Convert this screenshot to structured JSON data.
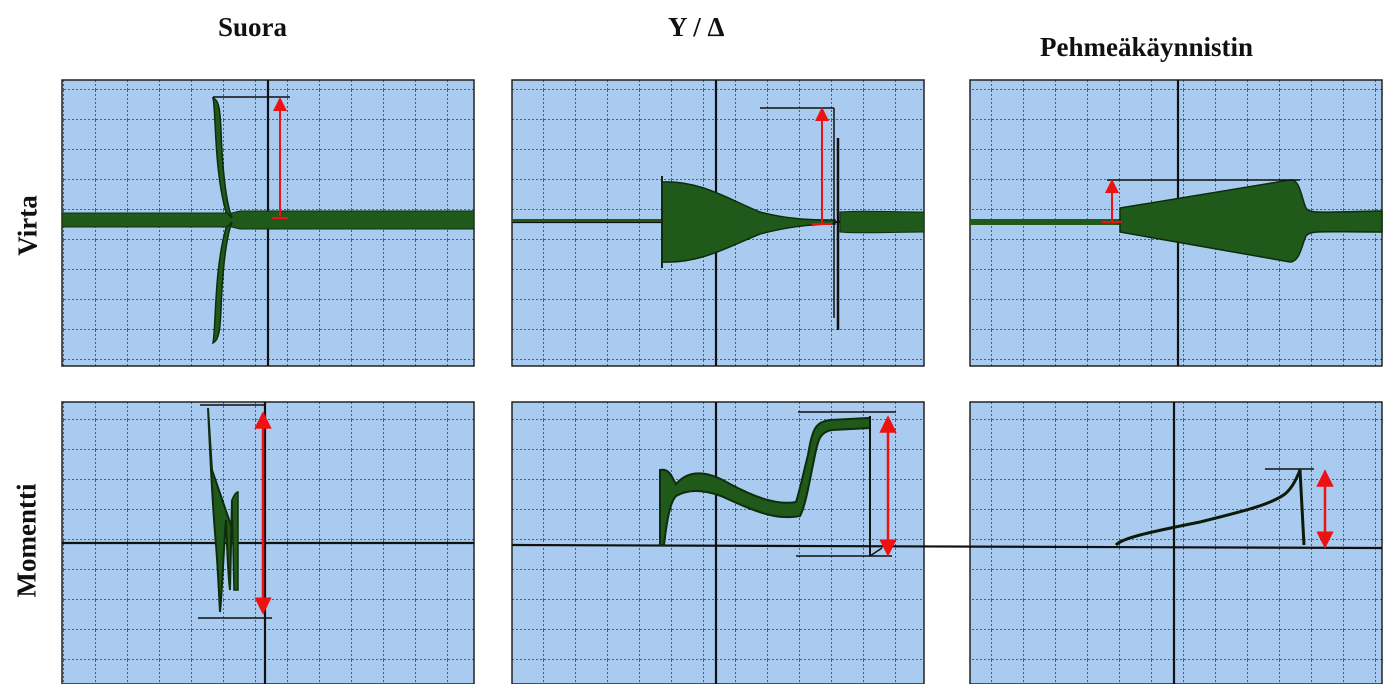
{
  "columns": [
    "Suora",
    "Y / Δ",
    "Pehmeäkäynnistin"
  ],
  "rows": [
    "Virta",
    "Momentti"
  ],
  "colors": {
    "panel_background": "#a9cbef",
    "grid_line": "#1a1f2a",
    "trace_fill": "#1f5a1a",
    "trace_stroke": "#102c0c",
    "axis": "#111111",
    "marker_arrow": "#ee1111"
  },
  "panels": [
    {
      "id": "suora-virta",
      "column": "Suora",
      "row": "Virta",
      "trace": "direct-on-line current",
      "marker": "peak current arrow"
    },
    {
      "id": "yd-virta",
      "column": "Y / Δ",
      "row": "Virta",
      "trace": "star-delta current",
      "marker": "peak current arrow"
    },
    {
      "id": "soft-virta",
      "column": "Pehmeäkäynnistin",
      "row": "Virta",
      "trace": "soft-starter current",
      "marker": "peak current arrow"
    },
    {
      "id": "suora-momentti",
      "column": "Suora",
      "row": "Momentti",
      "trace": "direct-on-line torque",
      "marker": "peak torque arrow"
    },
    {
      "id": "yd-momentti",
      "column": "Y / Δ",
      "row": "Momentti",
      "trace": "star-delta torque",
      "marker": "peak torque arrow"
    },
    {
      "id": "soft-momentti",
      "column": "Pehmeäkäynnistin",
      "row": "Momentti",
      "trace": "soft-starter torque",
      "marker": "peak torque arrow"
    }
  ]
}
